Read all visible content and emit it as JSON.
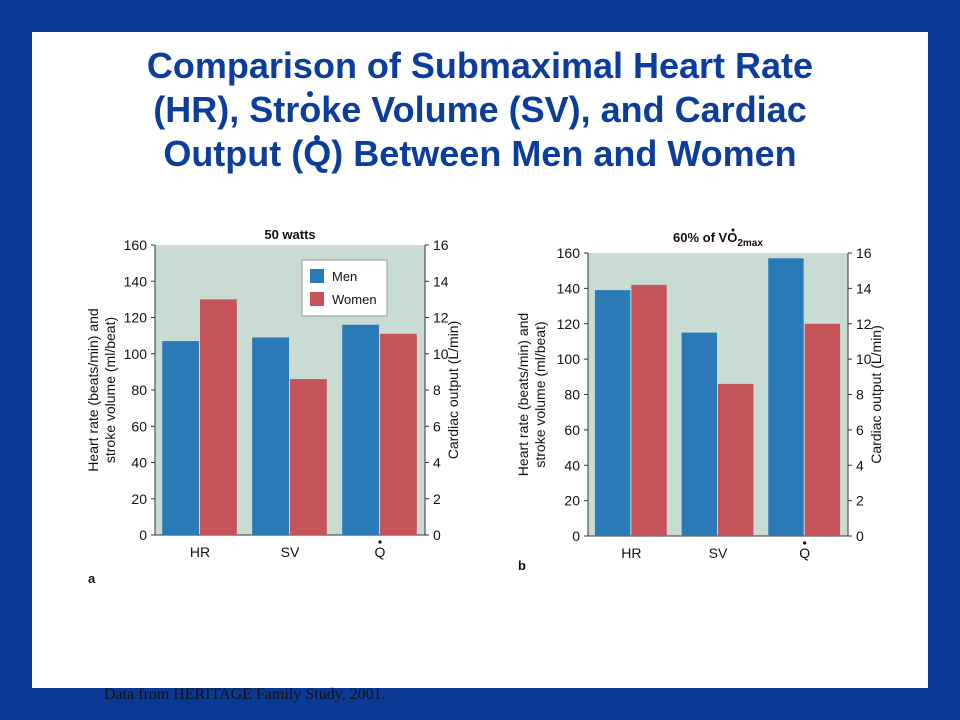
{
  "title": {
    "line1": "Comparison of Submaximal Heart Rate",
    "line2_a": "(HR), Str",
    "line2_b": "o",
    "line2_c": "ke Volume (SV), and Cardiac",
    "line3_a": "Output (",
    "line3_q": "Q",
    "line3_b": ") Between Men and Women"
  },
  "source": "Data from HERITAGE Family Study, 2001.",
  "colors": {
    "men": "#2a7ab8",
    "women": "#c4545a",
    "plot_bg": "#c8dcd4",
    "frame": "#0a3a96",
    "title": "#0b3d9c"
  },
  "chart_data": [
    {
      "type": "bar",
      "panel_label": "a",
      "title": "50 watts",
      "categories": [
        "HR",
        "SV",
        "Q"
      ],
      "series": [
        {
          "name": "Men",
          "values": [
            107,
            109,
            11.6
          ]
        },
        {
          "name": "Women",
          "values": [
            130,
            86,
            11.1
          ]
        }
      ],
      "ylabel_left": "Heart rate (beats/min) and stroke volume (ml/beat)",
      "ylabel_left_lines": [
        "Heart rate (beats/min) and",
        "stroke volume (ml/beat)"
      ],
      "ylabel_right": "Cardiac output (L/min)",
      "ylim_left": [
        0,
        160
      ],
      "ylim_right": [
        0,
        16
      ],
      "yticks_left": [
        "0",
        "20",
        "40",
        "60",
        "80",
        "100",
        "120",
        "140",
        "160"
      ],
      "yticks_right": [
        "0",
        "2",
        "4",
        "6",
        "8",
        "10",
        "12",
        "14",
        "16"
      ],
      "legend": "top-right",
      "grid": false
    },
    {
      "type": "bar",
      "panel_label": "b",
      "title": "60% of VO2max",
      "title_parts": {
        "pre": "60% of ",
        "v": "V",
        "o": "O",
        "sub": "2max"
      },
      "categories": [
        "HR",
        "SV",
        "Q"
      ],
      "series": [
        {
          "name": "Men",
          "values": [
            139,
            115,
            15.7
          ]
        },
        {
          "name": "Women",
          "values": [
            142,
            86,
            12.0
          ]
        }
      ],
      "ylabel_left": "Heart rate (beats/min) and stroke volume (ml/beat)",
      "ylabel_left_lines": [
        "Heart rate (beats/min) and",
        "stroke volume (ml/beat)"
      ],
      "ylabel_right": "Cardiac output (L/min)",
      "ylim_left": [
        0,
        160
      ],
      "ylim_right": [
        0,
        16
      ],
      "yticks_left": [
        "0",
        "20",
        "40",
        "60",
        "80",
        "100",
        "120",
        "140",
        "160"
      ],
      "yticks_right": [
        "0",
        "2",
        "4",
        "6",
        "8",
        "10",
        "12",
        "14",
        "16"
      ],
      "legend": "none",
      "grid": false
    }
  ]
}
